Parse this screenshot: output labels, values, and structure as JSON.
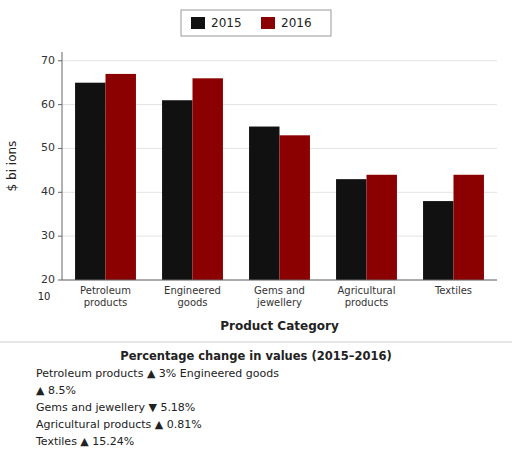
{
  "chart_data": {
    "type": "bar",
    "categories": [
      "Petroleum\nproducts",
      "Engineered\ngoods",
      "Gems and\njewellery",
      "Agricultural\nproducts",
      "Textiles"
    ],
    "series": [
      {
        "name": "2015",
        "color": "#111111",
        "values": [
          65,
          61,
          55,
          43,
          38
        ]
      },
      {
        "name": "2016",
        "color": "#8b0000",
        "values": [
          67,
          66,
          53,
          44,
          44
        ]
      }
    ],
    "xlabel": "Product Category",
    "ylabel": "$ bi ions",
    "ylim": [
      20,
      72
    ],
    "yticks": [
      20,
      30,
      40,
      50,
      60,
      70
    ],
    "grid": true,
    "legend": "top",
    "annotations": [
      "10",
      "Percentage change in values (2015–2016)",
      "Petroleum products ▲ 3% Engineered goods",
      "▲ 8.5%",
      "Gems and jewellery ▼ 5.18%",
      "Agricultural products ▲ 0.81%",
      "Textiles ▲ 15.24%"
    ]
  }
}
